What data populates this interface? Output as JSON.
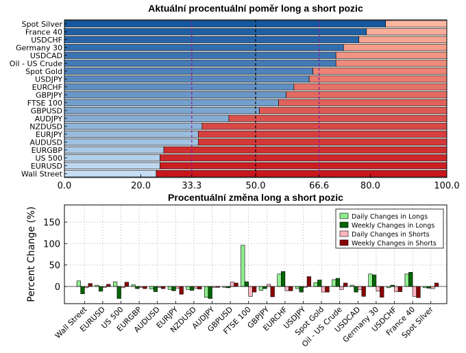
{
  "chart_data": [
    {
      "type": "bar",
      "orientation": "horizontal",
      "stacked": true,
      "title": "Aktuální procentuální poměr long a short pozic",
      "categories": [
        "Spot Silver",
        "France 40",
        "USDCHF",
        "Germany 30",
        "USDCAD",
        "Oil - US Crude",
        "Spot Gold",
        "USDJPY",
        "EURCHF",
        "GBPJPY",
        "FTSE 100",
        "GBPUSD",
        "AUDJPY",
        "NZDUSD",
        "EURJPY",
        "AUDUSD",
        "EURGBP",
        "US 500",
        "EURUSD",
        "Wall Street"
      ],
      "series": [
        {
          "values": [
            84,
            79,
            77,
            73,
            71,
            71,
            65,
            64,
            60,
            58,
            56,
            51,
            43,
            36,
            35,
            35,
            26,
            25,
            25,
            24
          ]
        },
        {
          "values": [
            16,
            21,
            23,
            27,
            29,
            29,
            35,
            36,
            40,
            42,
            44,
            49,
            57,
            64,
            65,
            65,
            74,
            75,
            75,
            76
          ]
        }
      ],
      "xlim": [
        0,
        100
      ],
      "xticks": [
        "0.0",
        "20.0",
        "33.3",
        "50.0",
        "66.6",
        "80.0",
        "100.0"
      ],
      "reference_lines": [
        33.3,
        50.0,
        66.6
      ],
      "colors": {
        "reference": "#8b1a9b",
        "center": "#000000",
        "tick_highlight": "#8b1a9b"
      }
    },
    {
      "type": "bar",
      "grouped": true,
      "title": "Procentuální změna long a short pozic",
      "ylabel": "Percent Change (%)",
      "ylim": [
        -40,
        190
      ],
      "yticks": [
        0,
        50,
        100,
        150
      ],
      "grid": true,
      "legend_position": "top-right",
      "categories": [
        "Wall Street",
        "EURUSD",
        "US 500",
        "EURGBP",
        "AUDUSD",
        "EURJPY",
        "NZDUSD",
        "AUDJPY",
        "GBPUSD",
        "FTSE 100",
        "GBPJPY",
        "EURCHF",
        "USDJPY",
        "Spot Gold",
        "Oil - US Crude",
        "USDCAD",
        "Germany 30",
        "USDCHF",
        "France 40",
        "Spot Silver"
      ],
      "series": [
        {
          "name": "Daily Changes in Longs",
          "color": "#90ee90",
          "values": [
            13,
            3,
            11,
            4,
            -6,
            -7,
            -7,
            -25,
            -2,
            96,
            -9,
            29,
            -5,
            9,
            16,
            3,
            29,
            -3,
            29,
            -3
          ]
        },
        {
          "name": "Weekly Changes in Longs",
          "color": "#006400",
          "values": [
            -17,
            -11,
            -28,
            -5,
            -12,
            -10,
            -9,
            -28,
            -3,
            11,
            -5,
            35,
            -13,
            15,
            19,
            -13,
            27,
            3,
            33,
            -4
          ]
        },
        {
          "name": "Daily Changes in Shorts",
          "color": "#ffb6c1",
          "values": [
            -3,
            -2,
            -3,
            -2,
            -2,
            -4,
            -4,
            -2,
            10,
            -23,
            5,
            -10,
            -2,
            -13,
            -7,
            -7,
            -11,
            -12,
            -23,
            -5
          ]
        },
        {
          "name": "Weekly Changes in Shorts",
          "color": "#8b0000",
          "values": [
            7,
            5,
            10,
            -5,
            -5,
            -18,
            -6,
            -2,
            8,
            -13,
            -24,
            -10,
            23,
            -13,
            8,
            -23,
            -25,
            -12,
            -26,
            8
          ]
        }
      ]
    }
  ]
}
